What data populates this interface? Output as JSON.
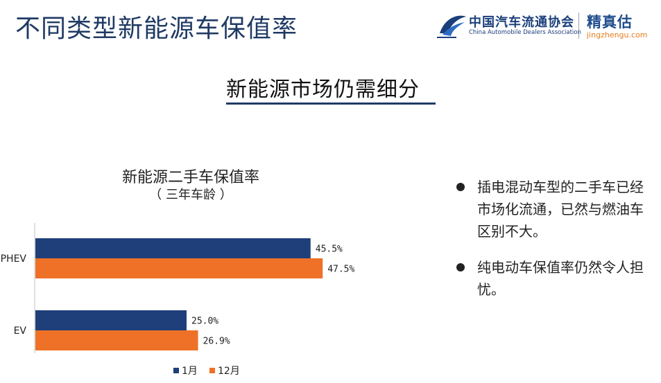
{
  "slide": {
    "title": "不同类型新能源车保值率",
    "section_heading": "新能源市场仍需细分"
  },
  "logos": {
    "cada_cn": "中国汽车流通协会",
    "cada_en": "China Automobile Dealers Association",
    "jzg_cn": "精真估",
    "jzg_url": "jingzhengu.com"
  },
  "chart_data": {
    "type": "bar",
    "orientation": "horizontal",
    "title": "新能源二手车保值率",
    "subtitle": "（  三年车龄  ）",
    "categories": [
      "PHEV",
      "EV"
    ],
    "series": [
      {
        "name": "1月",
        "values": [
          45.5,
          25.0
        ],
        "labels": [
          "45.5%",
          "25.0%"
        ],
        "color": "#1f3f7a"
      },
      {
        "name": "12月",
        "values": [
          47.5,
          26.9
        ],
        "labels": [
          "47.5%",
          "26.9%"
        ],
        "color": "#ee7127"
      }
    ],
    "xlim": [
      0,
      100
    ],
    "legend": "bottom",
    "grid": false
  },
  "bullets": [
    "插电混动车型的二手车已经市场化流通，已然与燃油车区别不大。",
    "纯电动车保值率仍然令人担忧。"
  ],
  "colors": {
    "title": "#1f3a64",
    "series_1": "#1f3f7a",
    "series_2": "#ee7127",
    "url": "#e87b1a"
  }
}
